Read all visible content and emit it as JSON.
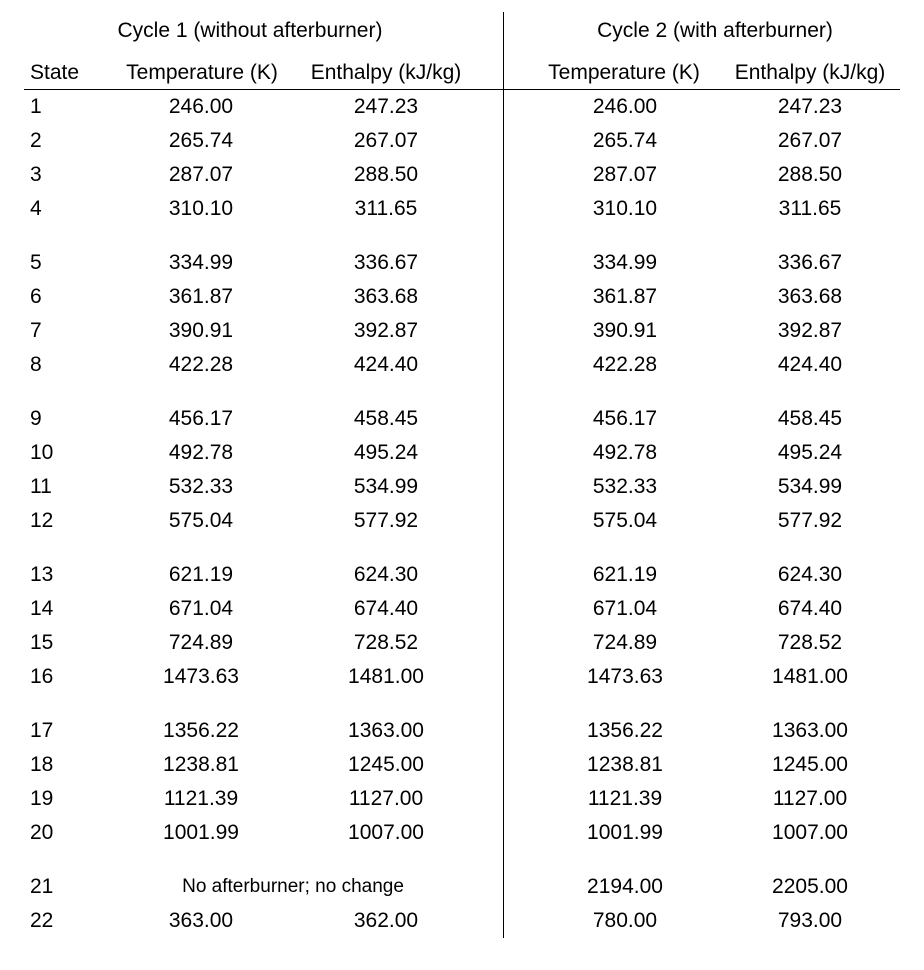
{
  "groups": {
    "cycle1": "Cycle 1 (without afterburner)",
    "cycle2": "Cycle 2 (with afterburner)"
  },
  "columns": {
    "state": "State",
    "c1_temp": "Temperature (K)",
    "c1_enth": "Enthalpy (kJ/kg)",
    "c2_temp": "Temperature (K)",
    "c2_enth": "Enthalpy (kJ/kg)"
  },
  "rows": [
    {
      "state": "1",
      "c1_temp": "246.00",
      "c1_enth": "247.23",
      "c2_temp": "246.00",
      "c2_enth": "247.23"
    },
    {
      "state": "2",
      "c1_temp": "265.74",
      "c1_enth": "267.07",
      "c2_temp": "265.74",
      "c2_enth": "267.07"
    },
    {
      "state": "3",
      "c1_temp": "287.07",
      "c1_enth": "288.50",
      "c2_temp": "287.07",
      "c2_enth": "288.50"
    },
    {
      "state": "4",
      "c1_temp": "310.10",
      "c1_enth": "311.65",
      "c2_temp": "310.10",
      "c2_enth": "311.65"
    },
    {
      "state": "5",
      "c1_temp": "334.99",
      "c1_enth": "336.67",
      "c2_temp": "334.99",
      "c2_enth": "336.67"
    },
    {
      "state": "6",
      "c1_temp": "361.87",
      "c1_enth": "363.68",
      "c2_temp": "361.87",
      "c2_enth": "363.68"
    },
    {
      "state": "7",
      "c1_temp": "390.91",
      "c1_enth": "392.87",
      "c2_temp": "390.91",
      "c2_enth": "392.87"
    },
    {
      "state": "8",
      "c1_temp": "422.28",
      "c1_enth": "424.40",
      "c2_temp": "422.28",
      "c2_enth": "424.40"
    },
    {
      "state": "9",
      "c1_temp": "456.17",
      "c1_enth": "458.45",
      "c2_temp": "456.17",
      "c2_enth": "458.45"
    },
    {
      "state": "10",
      "c1_temp": "492.78",
      "c1_enth": "495.24",
      "c2_temp": "492.78",
      "c2_enth": "495.24"
    },
    {
      "state": "11",
      "c1_temp": "532.33",
      "c1_enth": "534.99",
      "c2_temp": "532.33",
      "c2_enth": "534.99"
    },
    {
      "state": "12",
      "c1_temp": "575.04",
      "c1_enth": "577.92",
      "c2_temp": "575.04",
      "c2_enth": "577.92"
    },
    {
      "state": "13",
      "c1_temp": "621.19",
      "c1_enth": "624.30",
      "c2_temp": "621.19",
      "c2_enth": "624.30"
    },
    {
      "state": "14",
      "c1_temp": "671.04",
      "c1_enth": "674.40",
      "c2_temp": "671.04",
      "c2_enth": "674.40"
    },
    {
      "state": "15",
      "c1_temp": "724.89",
      "c1_enth": "728.52",
      "c2_temp": "724.89",
      "c2_enth": "728.52"
    },
    {
      "state": "16",
      "c1_temp": "1473.63",
      "c1_enth": "1481.00",
      "c2_temp": "1473.63",
      "c2_enth": "1481.00"
    },
    {
      "state": "17",
      "c1_temp": "1356.22",
      "c1_enth": "1363.00",
      "c2_temp": "1356.22",
      "c2_enth": "1363.00"
    },
    {
      "state": "18",
      "c1_temp": "1238.81",
      "c1_enth": "1245.00",
      "c2_temp": "1238.81",
      "c2_enth": "1245.00"
    },
    {
      "state": "19",
      "c1_temp": "1121.39",
      "c1_enth": "1127.00",
      "c2_temp": "1121.39",
      "c2_enth": "1127.00"
    },
    {
      "state": "20",
      "c1_temp": "1001.99",
      "c1_enth": "1007.00",
      "c2_temp": "1001.99",
      "c2_enth": "1007.00"
    },
    {
      "state": "21",
      "c1_note": "No afterburner; no change",
      "c2_temp": "2194.00",
      "c2_enth": "2205.00"
    },
    {
      "state": "22",
      "c1_temp": "363.00",
      "c1_enth": "362.00",
      "c2_temp": "780.00",
      "c2_enth": "793.00"
    }
  ]
}
